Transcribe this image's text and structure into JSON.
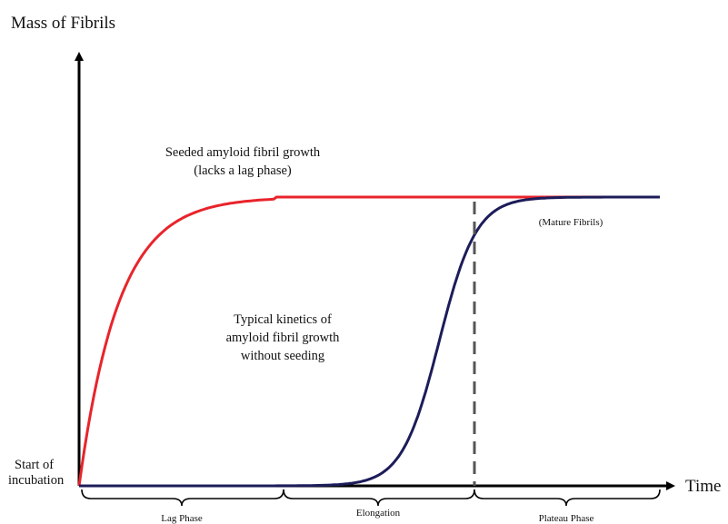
{
  "axes": {
    "y_label": "Mass of Fibrils",
    "x_label": "Time"
  },
  "annotations": {
    "origin_line1": "Start of",
    "origin_line2": "incubation",
    "seeded_line1": "Seeded amyloid fibril growth",
    "seeded_line2": "(lacks a lag phase)",
    "typical_line1": "Typical kinetics of",
    "typical_line2": "amyloid fibril growth",
    "typical_line3": "without seeding",
    "mature": "(Mature Fibrils)"
  },
  "phases": [
    {
      "label": "Lag Phase"
    },
    {
      "label": "Elongation"
    },
    {
      "label": "Plateau Phase"
    }
  ],
  "colors": {
    "seeded": "#e8242b",
    "typical": "#1c1c5a",
    "axis": "#000000",
    "divider": "#555555"
  },
  "chart_data": {
    "type": "line",
    "series": [
      {
        "name": "Seeded amyloid fibril growth",
        "shape": "exponential-rise-no-lag",
        "t_plateau": 0.34
      },
      {
        "name": "Typical kinetics of amyloid fibril growth without seeding",
        "shape": "sigmoidal",
        "t_lag_end": 0.34,
        "t_half": 0.62,
        "t_plateau": 0.68
      }
    ],
    "plateau_level": 1.0,
    "phase_boundaries": [
      0.34,
      0.68
    ]
  }
}
